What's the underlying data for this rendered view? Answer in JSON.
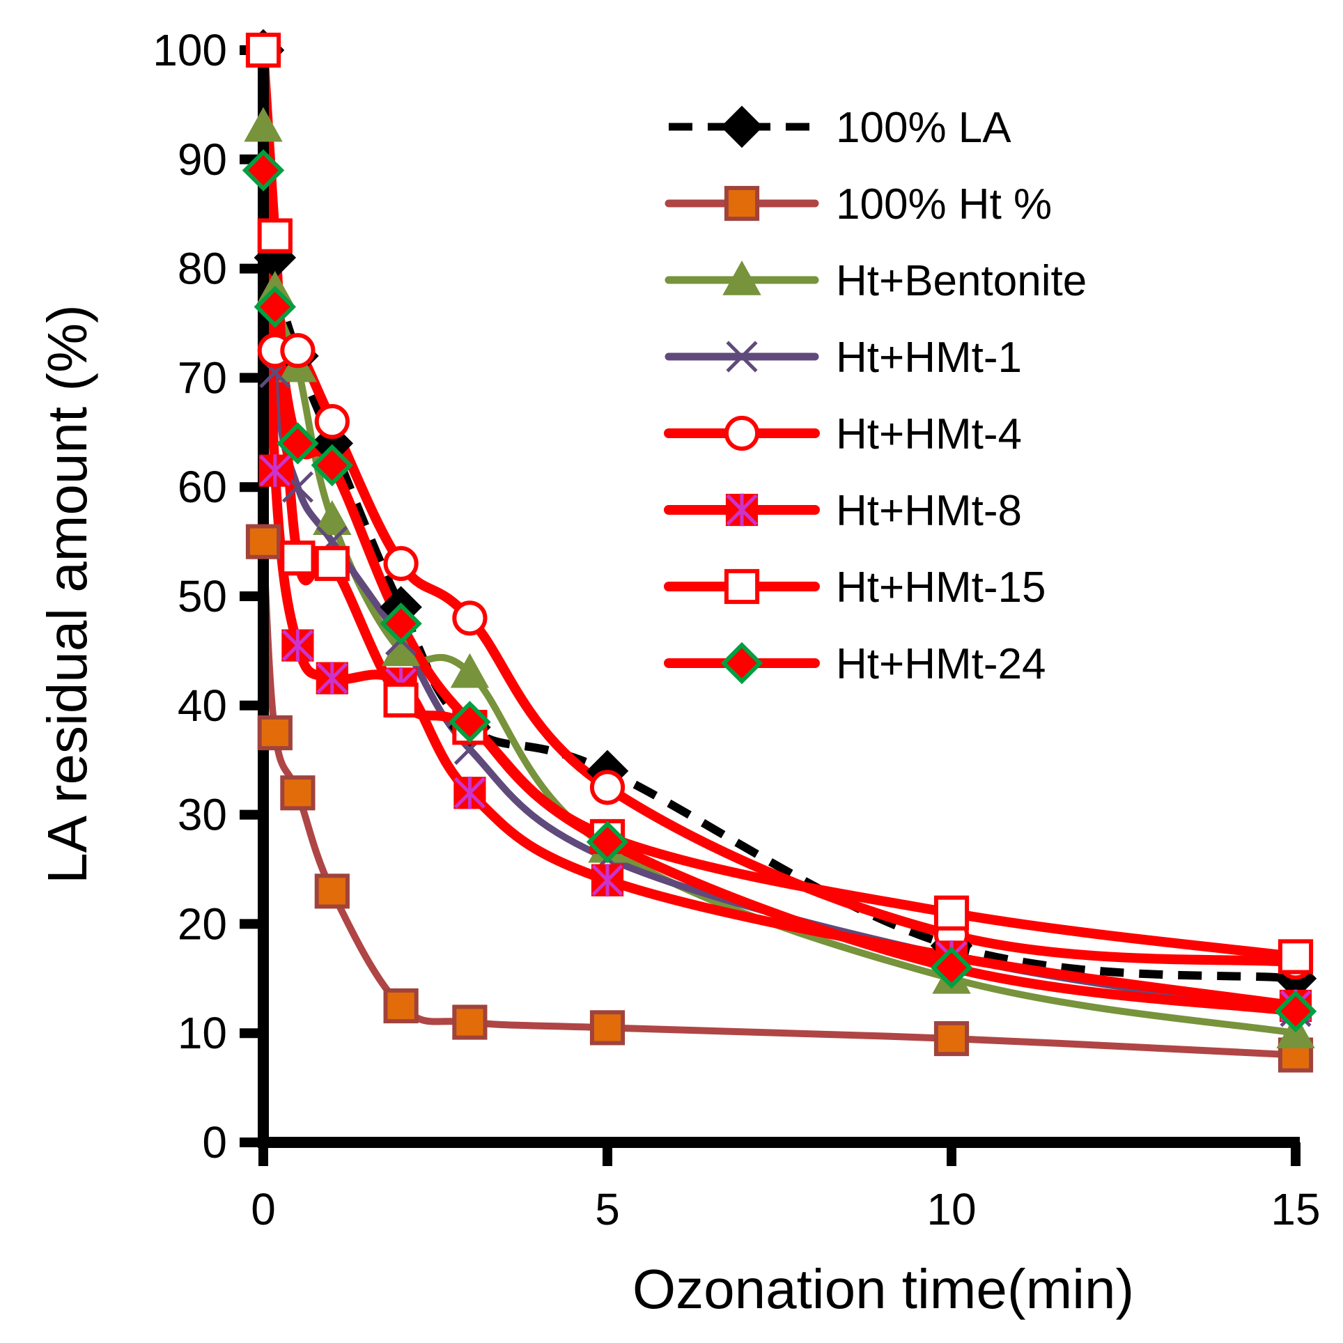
{
  "chart_data": {
    "type": "line",
    "title": "",
    "xlabel": "Ozonation time(min)",
    "ylabel": "LA residual amount (%)",
    "xlim": [
      0,
      15
    ],
    "ylim": [
      0,
      100
    ],
    "xticks": [
      0,
      5,
      10,
      15
    ],
    "yticks": [
      0,
      10,
      20,
      30,
      40,
      50,
      60,
      70,
      80,
      90,
      100
    ],
    "grid": false,
    "legend_position": "top-right",
    "series": [
      {
        "name": "100% LA",
        "color": "#000000",
        "marker": "diamond",
        "marker_fill": "#000000",
        "marker_stroke": "#000000",
        "line_style": "dashed",
        "x": [
          0,
          0.17,
          0.5,
          1,
          2,
          3,
          5,
          10,
          15
        ],
        "y": [
          100,
          81,
          72,
          64,
          49,
          38,
          34,
          18,
          15
        ]
      },
      {
        "name": "100% Ht %",
        "color": "#b04545",
        "marker": "square",
        "marker_fill": "#e36c0a",
        "marker_stroke": "#a0433c",
        "line_style": "solid",
        "x": [
          0,
          0.17,
          0.5,
          1,
          2,
          3,
          5,
          10,
          15
        ],
        "y": [
          55,
          37.5,
          32,
          23,
          12.5,
          11,
          10.5,
          9.5,
          8
        ]
      },
      {
        "name": "Ht+Bentonite",
        "color": "#77933c",
        "marker": "triangle",
        "marker_fill": "#77933c",
        "marker_stroke": "#77933c",
        "line_style": "solid",
        "x": [
          0,
          0.17,
          0.5,
          1,
          2,
          3,
          5,
          10,
          15
        ],
        "y": [
          93,
          78,
          71,
          57,
          45,
          43,
          27,
          15,
          10
        ]
      },
      {
        "name": "Ht+HMt-1",
        "color": "#604a7b",
        "marker": "x",
        "marker_fill": "none",
        "marker_stroke": "#604a7b",
        "line_style": "solid",
        "x": [
          0,
          0.17,
          0.5,
          1,
          2,
          3,
          5,
          10,
          15
        ],
        "y": [
          100,
          70.5,
          60,
          55,
          46,
          36,
          26,
          17,
          12
        ]
      },
      {
        "name": "Ht+HMt-4",
        "color": "#ff0000",
        "marker": "circle",
        "marker_fill": "#ffffff",
        "marker_stroke": "#ff0000",
        "line_style": "solid",
        "x": [
          0,
          0.17,
          0.5,
          1,
          2,
          3,
          5,
          10,
          15
        ],
        "y": [
          100,
          72.5,
          72.5,
          66,
          53,
          48,
          32.5,
          19,
          16.5
        ]
      },
      {
        "name": "Ht+HMt-8",
        "color": "#ff0000",
        "marker": "asterisk-box",
        "marker_fill": "#ff0000",
        "marker_stroke": "#cc33cc",
        "line_style": "solid",
        "x": [
          0,
          0.17,
          0.5,
          1,
          2,
          3,
          5,
          10,
          15
        ],
        "y": [
          100,
          61.5,
          45.5,
          42.5,
          42,
          32,
          24,
          17,
          12.5
        ]
      },
      {
        "name": "Ht+HMt-15",
        "color": "#ff0000",
        "marker": "square",
        "marker_fill": "#ffffff",
        "marker_stroke": "#ff0000",
        "line_style": "solid",
        "x": [
          0,
          0.17,
          0.5,
          1,
          2,
          3,
          5,
          10,
          15
        ],
        "y": [
          100,
          83,
          53.5,
          53,
          40.5,
          38,
          28,
          21,
          17
        ]
      },
      {
        "name": "Ht+HMt-24",
        "color": "#ff0000",
        "marker": "diamond",
        "marker_fill": "#ff0000",
        "marker_stroke": "#00a040",
        "line_style": "solid",
        "x": [
          0,
          0.17,
          0.5,
          1,
          2,
          3,
          5,
          10,
          15
        ],
        "y": [
          89,
          76.5,
          64,
          62,
          47.5,
          38.5,
          27.5,
          16,
          12
        ]
      }
    ]
  }
}
